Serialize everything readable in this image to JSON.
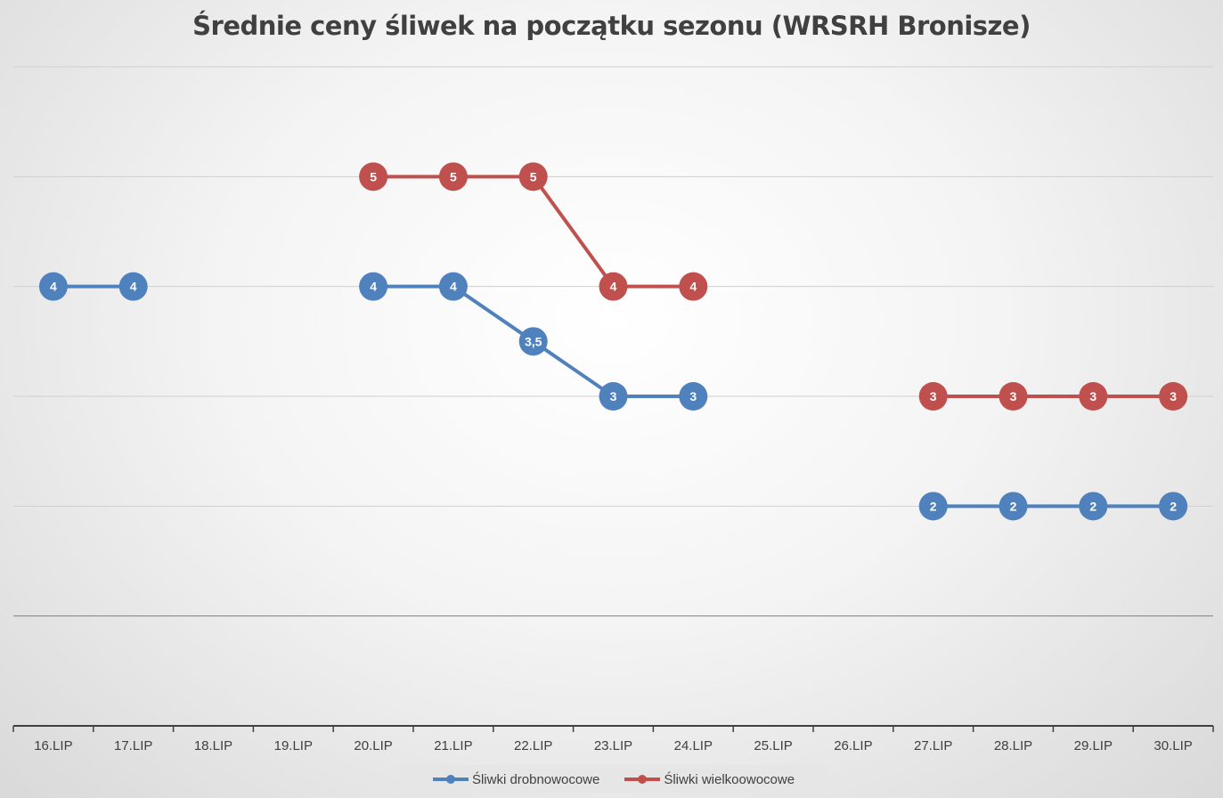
{
  "chart_data": {
    "type": "line",
    "title": "Średnie ceny śliwek na początku sezonu (WRSRH Bronisze)",
    "xlabel": "",
    "ylabel": "",
    "categories": [
      "16.LIP",
      "17.LIP",
      "18.LIP",
      "19.LIP",
      "20.LIP",
      "21.LIP",
      "22.LIP",
      "23.LIP",
      "24.LIP",
      "25.LIP",
      "26.LIP",
      "27.LIP",
      "28.LIP",
      "29.LIP",
      "30.LIP"
    ],
    "ylim": [
      0,
      6
    ],
    "grid": true,
    "legend_position": "bottom",
    "series": [
      {
        "name": "Śliwki drobnowocowe",
        "color": "#4f81bd",
        "values": [
          4,
          4,
          null,
          null,
          4,
          4,
          3.5,
          3,
          3,
          null,
          null,
          2,
          2,
          2,
          2
        ],
        "labels": [
          "4",
          "4",
          "",
          "",
          "4",
          "4",
          "3,5",
          "3",
          "3",
          "",
          "",
          "2",
          "2",
          "2",
          "2"
        ]
      },
      {
        "name": "Śliwki wielkoowocowe",
        "color": "#c0504d",
        "values": [
          null,
          null,
          null,
          null,
          5,
          5,
          5,
          4,
          4,
          null,
          null,
          3,
          3,
          3,
          3
        ],
        "labels": [
          "",
          "",
          "",
          "",
          "5",
          "5",
          "5",
          "4",
          "4",
          "",
          "",
          "3",
          "3",
          "3",
          "3"
        ]
      }
    ]
  }
}
